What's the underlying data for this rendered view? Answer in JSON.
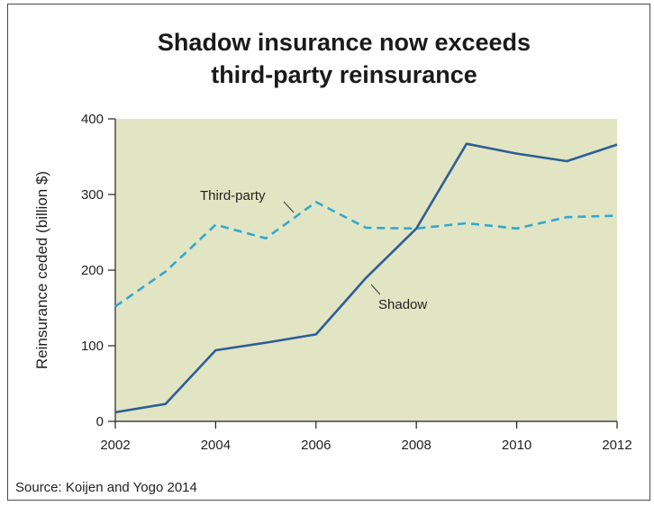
{
  "chart_data": {
    "type": "line",
    "title": [
      "Shadow insurance now exceeds",
      "third-party reinsurance"
    ],
    "ylabel": "Reinsurance ceded (billion $)",
    "xlabel": "",
    "xlim": [
      2002,
      2012
    ],
    "ylim": [
      0,
      400
    ],
    "x_ticks": [
      2002,
      2004,
      2006,
      2008,
      2010,
      2012
    ],
    "y_ticks": [
      0,
      100,
      200,
      300,
      400
    ],
    "grid": false,
    "plot_background": "#e2e5c3",
    "series": [
      {
        "name": "Third-party",
        "style": "dashed",
        "color": "#31a9d1",
        "x": [
          2002,
          2003,
          2004,
          2005,
          2006,
          2007,
          2008,
          2009,
          2010,
          2011,
          2012
        ],
        "values": [
          152,
          198,
          260,
          242,
          290,
          256,
          255,
          262,
          255,
          270,
          272
        ]
      },
      {
        "name": "Shadow",
        "style": "solid",
        "color": "#2e5e96",
        "x": [
          2002,
          2003,
          2004,
          2005,
          2006,
          2007,
          2008,
          2009,
          2010,
          2011,
          2012
        ],
        "values": [
          12,
          23,
          94,
          104,
          115,
          190,
          255,
          367,
          354,
          344,
          366
        ]
      }
    ],
    "annotations": [
      {
        "text": "Third-party",
        "series": "Third-party"
      },
      {
        "text": "Shadow",
        "series": "Shadow"
      }
    ],
    "source": "Source: Koijen and Yogo 2014"
  }
}
